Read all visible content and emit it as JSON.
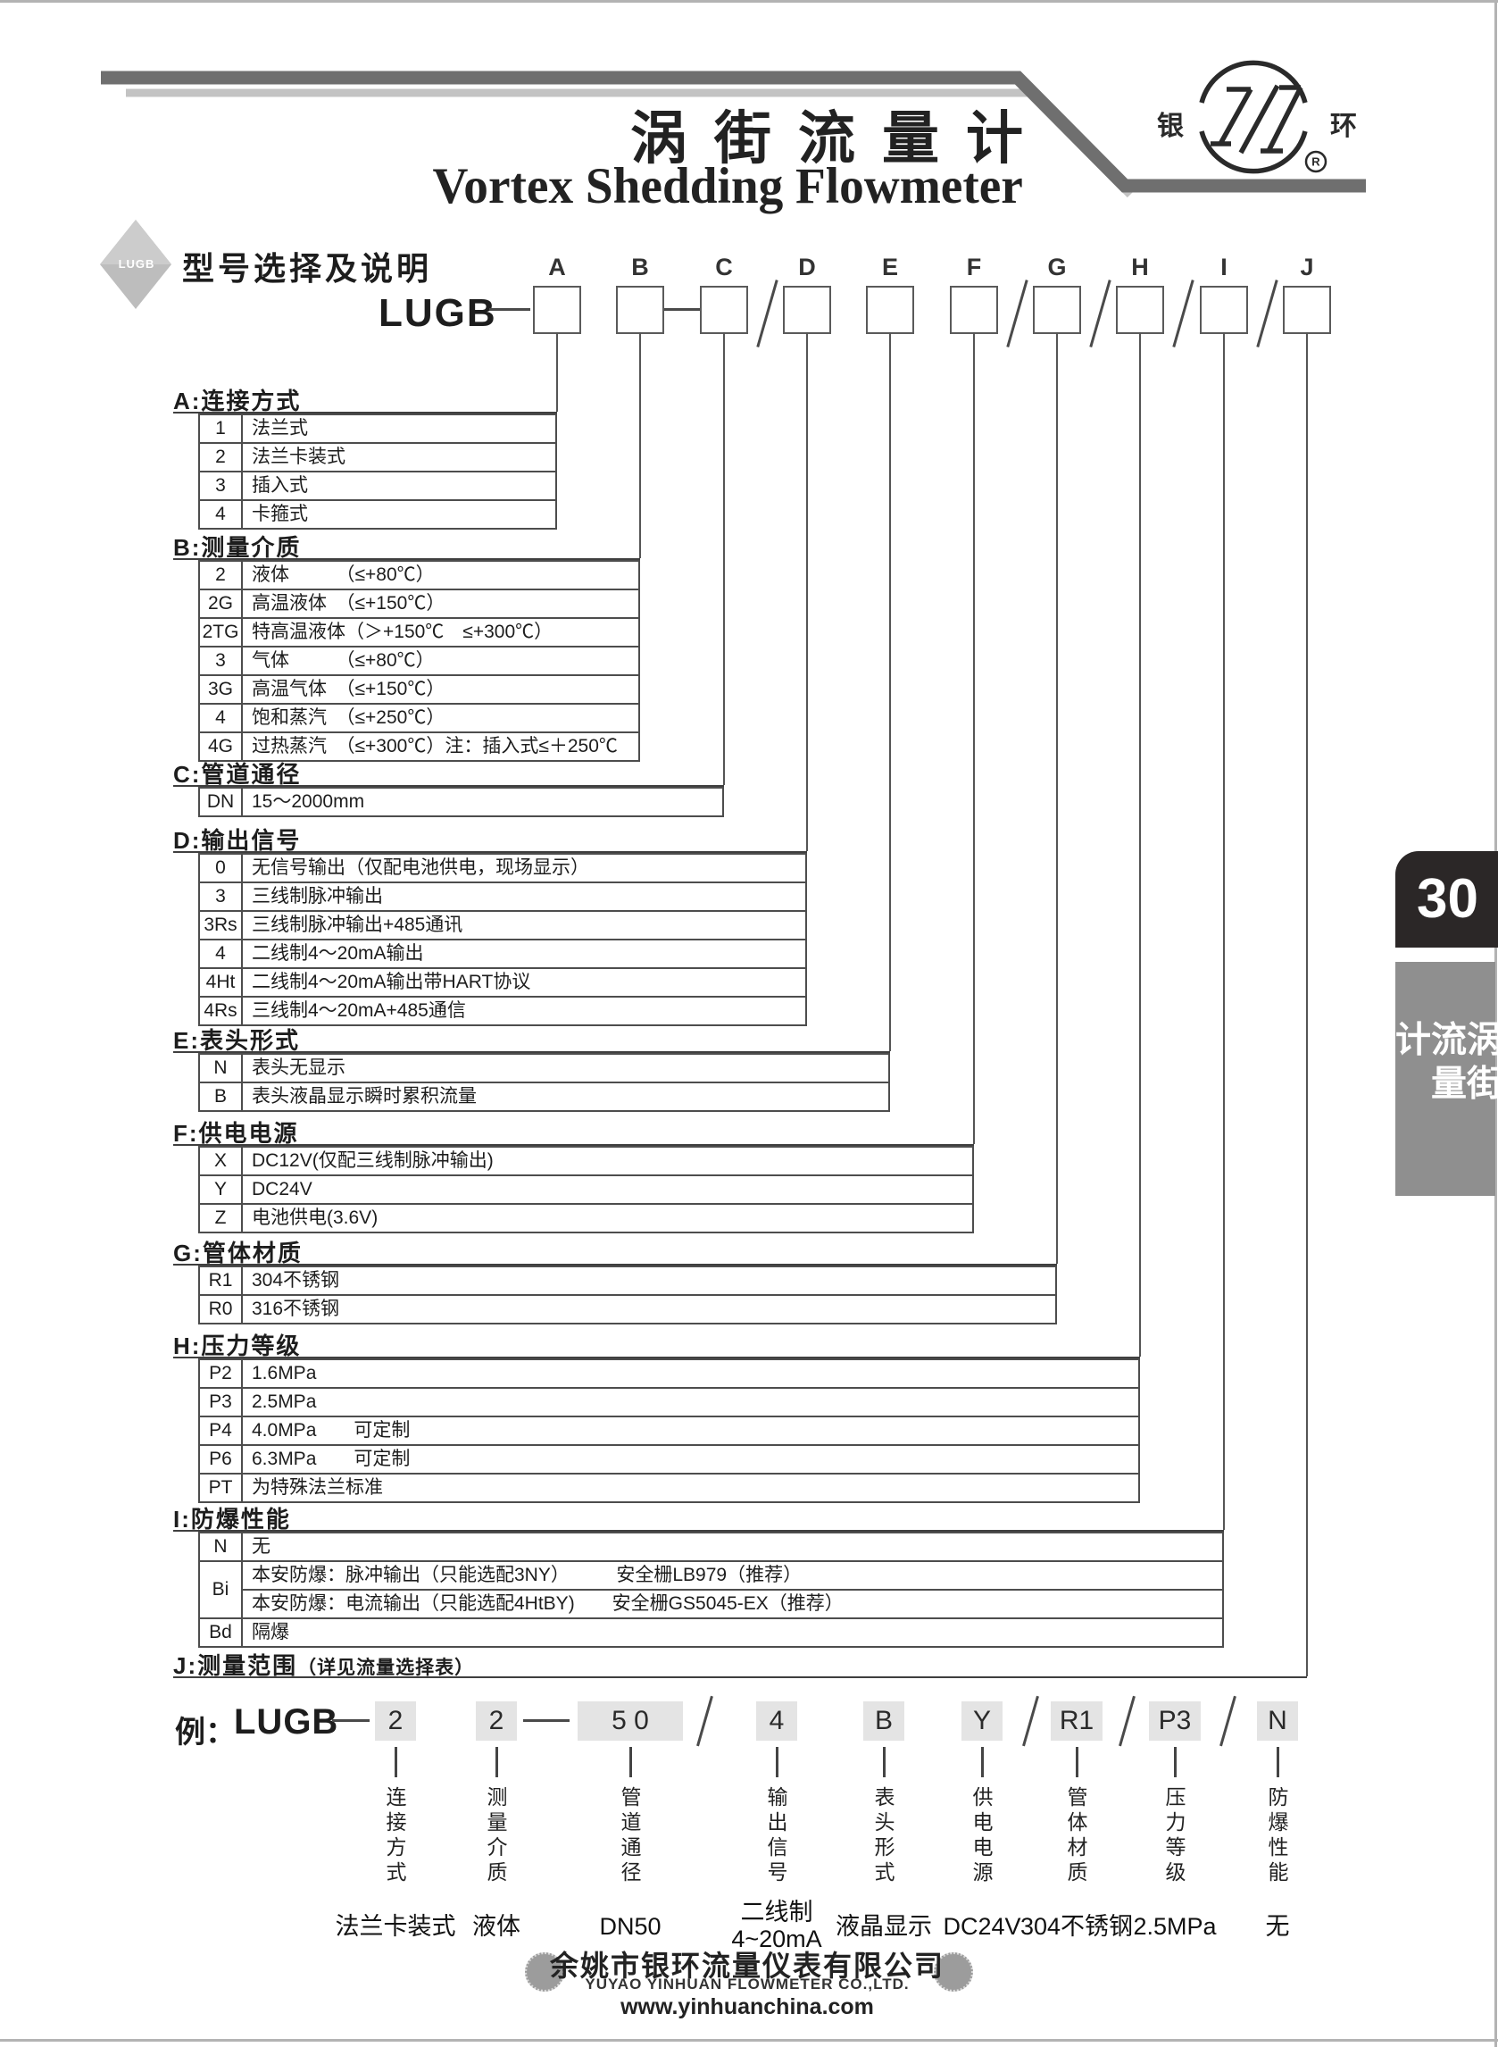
{
  "page": {
    "number": "30",
    "side_tab": "涡街流量计"
  },
  "header": {
    "title_cn": "涡街流量计",
    "title_en": "Vortex Shedding Flowmeter",
    "logo_left": "银",
    "logo_right": "环",
    "logo_reg": "R"
  },
  "model_selector": {
    "badge": "LUGB",
    "heading": "型号选择及说明",
    "prefix": "LUGB",
    "letters": [
      "A",
      "B",
      "C",
      "D",
      "E",
      "F",
      "G",
      "H",
      "I",
      "J"
    ]
  },
  "sections": [
    {
      "id": "A",
      "title": "A:连接方式",
      "rows": [
        [
          "1",
          "法兰式"
        ],
        [
          "2",
          "法兰卡装式"
        ],
        [
          "3",
          "插入式"
        ],
        [
          "4",
          "卡箍式"
        ]
      ]
    },
    {
      "id": "B",
      "title": "B:测量介质",
      "rows": [
        [
          "2",
          "液体　　　（≤+80℃）"
        ],
        [
          "2G",
          "高温液体　（≤+150℃）"
        ],
        [
          "2TG",
          "特高温液体（＞+150℃　≤+300℃）"
        ],
        [
          "3",
          "气体　　　（≤+80℃）"
        ],
        [
          "3G",
          "高温气体　（≤+150℃）"
        ],
        [
          "4",
          "饱和蒸汽　（≤+250℃）"
        ],
        [
          "4G",
          "过热蒸汽　（≤+300℃）注：插入式≤＋250℃"
        ]
      ]
    },
    {
      "id": "C",
      "title": "C:管道通径",
      "rows": [
        [
          "DN",
          "15～2000mm"
        ]
      ]
    },
    {
      "id": "D",
      "title": "D:输出信号",
      "rows": [
        [
          "0",
          "无信号输出（仅配电池供电，现场显示）"
        ],
        [
          "3",
          "三线制脉冲输出"
        ],
        [
          "3Rs",
          "三线制脉冲输出+485通讯"
        ],
        [
          "4",
          "二线制4～20mA输出"
        ],
        [
          "4Ht",
          "二线制4～20mA输出带HART协议"
        ],
        [
          "4Rs",
          "三线制4～20mA+485通信"
        ]
      ]
    },
    {
      "id": "E",
      "title": "E:表头形式",
      "rows": [
        [
          "N",
          "表头无显示"
        ],
        [
          "B",
          "表头液晶显示瞬时累积流量"
        ]
      ]
    },
    {
      "id": "F",
      "title": "F:供电电源",
      "rows": [
        [
          "X",
          "DC12V(仅配三线制脉冲输出)"
        ],
        [
          "Y",
          "DC24V"
        ],
        [
          "Z",
          "电池供电(3.6V)"
        ]
      ]
    },
    {
      "id": "G",
      "title": "G:管体材质",
      "rows": [
        [
          "R1",
          "304不锈钢"
        ],
        [
          "R0",
          "316不锈钢"
        ]
      ]
    },
    {
      "id": "H",
      "title": "H:压力等级",
      "rows": [
        [
          "P2",
          "1.6MPa"
        ],
        [
          "P3",
          "2.5MPa"
        ],
        [
          "P4",
          "4.0MPa　　可定制"
        ],
        [
          "P6",
          "6.3MPa　　可定制"
        ],
        [
          "PT",
          "为特殊法兰标准"
        ]
      ]
    },
    {
      "id": "I",
      "title": "I:防爆性能",
      "rows": [
        [
          "N",
          "无"
        ],
        [
          "Bi",
          "本安防爆：脉冲输出（只能选配3NY）　　　安全栅LB979（推荐）",
          "span2"
        ],
        [
          "",
          "本安防爆：电流输出（只能选配4HtBY)　　安全栅GS5045-EX（推荐）",
          "merged"
        ],
        [
          "Bd",
          "隔爆"
        ]
      ]
    },
    {
      "id": "J",
      "title": "J:测量范围",
      "title_suffix": "（详见流量选择表）",
      "rows": []
    }
  ],
  "example": {
    "label": "例：",
    "prefix": "LUGB",
    "items": [
      {
        "value": "2",
        "vlabel": "连接方式",
        "desc": "法兰卡装式"
      },
      {
        "value": "2",
        "vlabel": "测量介质",
        "desc": "液体"
      },
      {
        "value": "5 0",
        "vlabel": "管道通径",
        "desc": "DN50"
      },
      {
        "value": "4",
        "vlabel": "输出信号",
        "desc": "二线制\n4~20mA"
      },
      {
        "value": "B",
        "vlabel": "表头形式",
        "desc": "液晶显示"
      },
      {
        "value": "Y",
        "vlabel": "供电电源",
        "desc": "DC24V"
      },
      {
        "value": "R1",
        "vlabel": "管体材质",
        "desc": "304不锈钢"
      },
      {
        "value": "P3",
        "vlabel": "压力等级",
        "desc": "2.5MPa"
      },
      {
        "value": "N",
        "vlabel": "防爆性能",
        "desc": "无"
      }
    ]
  },
  "footer": {
    "company_cn": "余姚市银环流量仪表有限公司",
    "company_en": "YUYAO YINHUAN FLOWMETER CO.,LTD.",
    "website": "www.yinhuanchina.com"
  },
  "colors": {
    "bar_dark": "#6f6f6f",
    "bar_light": "#c3c3c3",
    "table_border": "#4d4d4d",
    "example_value_bg": "#e4e4e4",
    "sidebar_dark": "#2b2727",
    "sidebar_gray": "#8f8f8f",
    "diamond_gray": "#bdbdbd"
  }
}
